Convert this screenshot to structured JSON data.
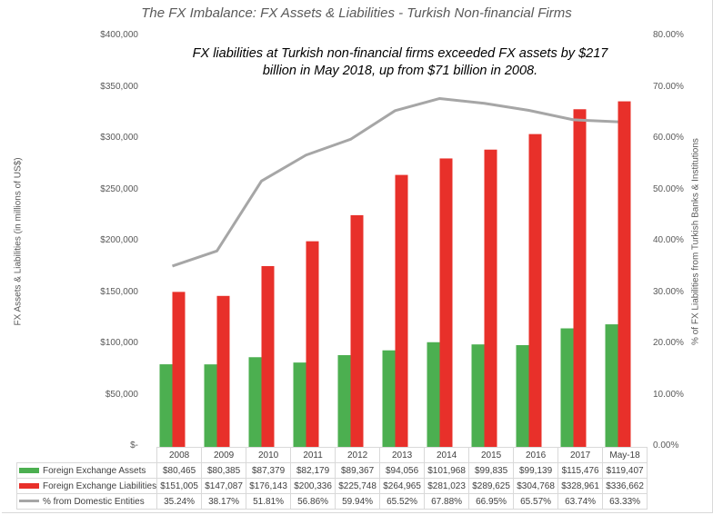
{
  "chart_data": {
    "type": "bar",
    "title": "The FX Imbalance: FX Assets & Liabilities - Turkish Non-financial Firms",
    "annotation": "FX liabilities at Turkish non-financial firms exceeded FX assets by $217 billion in May 2018, up from $71 billion in 2008.",
    "ylabel": "FX Assets & Liabilities (in millions of US$)",
    "y2label": "% of FX Liabilities from Turkish Banks & Institutions",
    "ylim": [
      0,
      400000
    ],
    "y2lim": [
      0,
      80
    ],
    "yticks": [
      "$-",
      "$50,000",
      "$100,000",
      "$150,000",
      "$200,000",
      "$250,000",
      "$300,000",
      "$350,000",
      "$400,000"
    ],
    "y2ticks": [
      "0.00%",
      "10.00%",
      "20.00%",
      "30.00%",
      "40.00%",
      "50.00%",
      "60.00%",
      "70.00%",
      "80.00%"
    ],
    "grid": false,
    "legend": "data-table",
    "categories": [
      "2008",
      "2009",
      "2010",
      "2011",
      "2012",
      "2013",
      "2014",
      "2015",
      "2016",
      "2017",
      "May-18"
    ],
    "series": [
      {
        "name": "Foreign Exchange Assets",
        "type": "bar",
        "axis": "left",
        "color": "#4caf50",
        "values": [
          80465,
          80385,
          87379,
          82179,
          89367,
          94056,
          101968,
          99835,
          99139,
          115476,
          119407
        ],
        "labels": [
          "$80,465",
          "$80,385",
          "$87,379",
          "$82,179",
          "$89,367",
          "$94,056",
          "$101,968",
          "$99,835",
          "$99,139",
          "$115,476",
          "$119,407"
        ]
      },
      {
        "name": "Foreign Exchange Liabilities",
        "type": "bar",
        "axis": "left",
        "color": "#e8302a",
        "values": [
          151005,
          147087,
          176143,
          200336,
          225748,
          264965,
          281023,
          289625,
          304768,
          328961,
          336662
        ],
        "labels": [
          "$151,005",
          "$147,087",
          "$176,143",
          "$200,336",
          "$225,748",
          "$264,965",
          "$281,023",
          "$289,625",
          "$304,768",
          "$328,961",
          "$336,662"
        ]
      },
      {
        "name": "% from Domestic Entities",
        "type": "line",
        "axis": "right",
        "color": "#a6a6a6",
        "values": [
          35.24,
          38.17,
          51.81,
          56.86,
          59.94,
          65.52,
          67.88,
          66.95,
          65.57,
          63.74,
          63.33
        ],
        "labels": [
          "35.24%",
          "38.17%",
          "51.81%",
          "56.86%",
          "59.94%",
          "65.52%",
          "67.88%",
          "66.95%",
          "65.57%",
          "63.74%",
          "63.33%"
        ]
      }
    ]
  }
}
